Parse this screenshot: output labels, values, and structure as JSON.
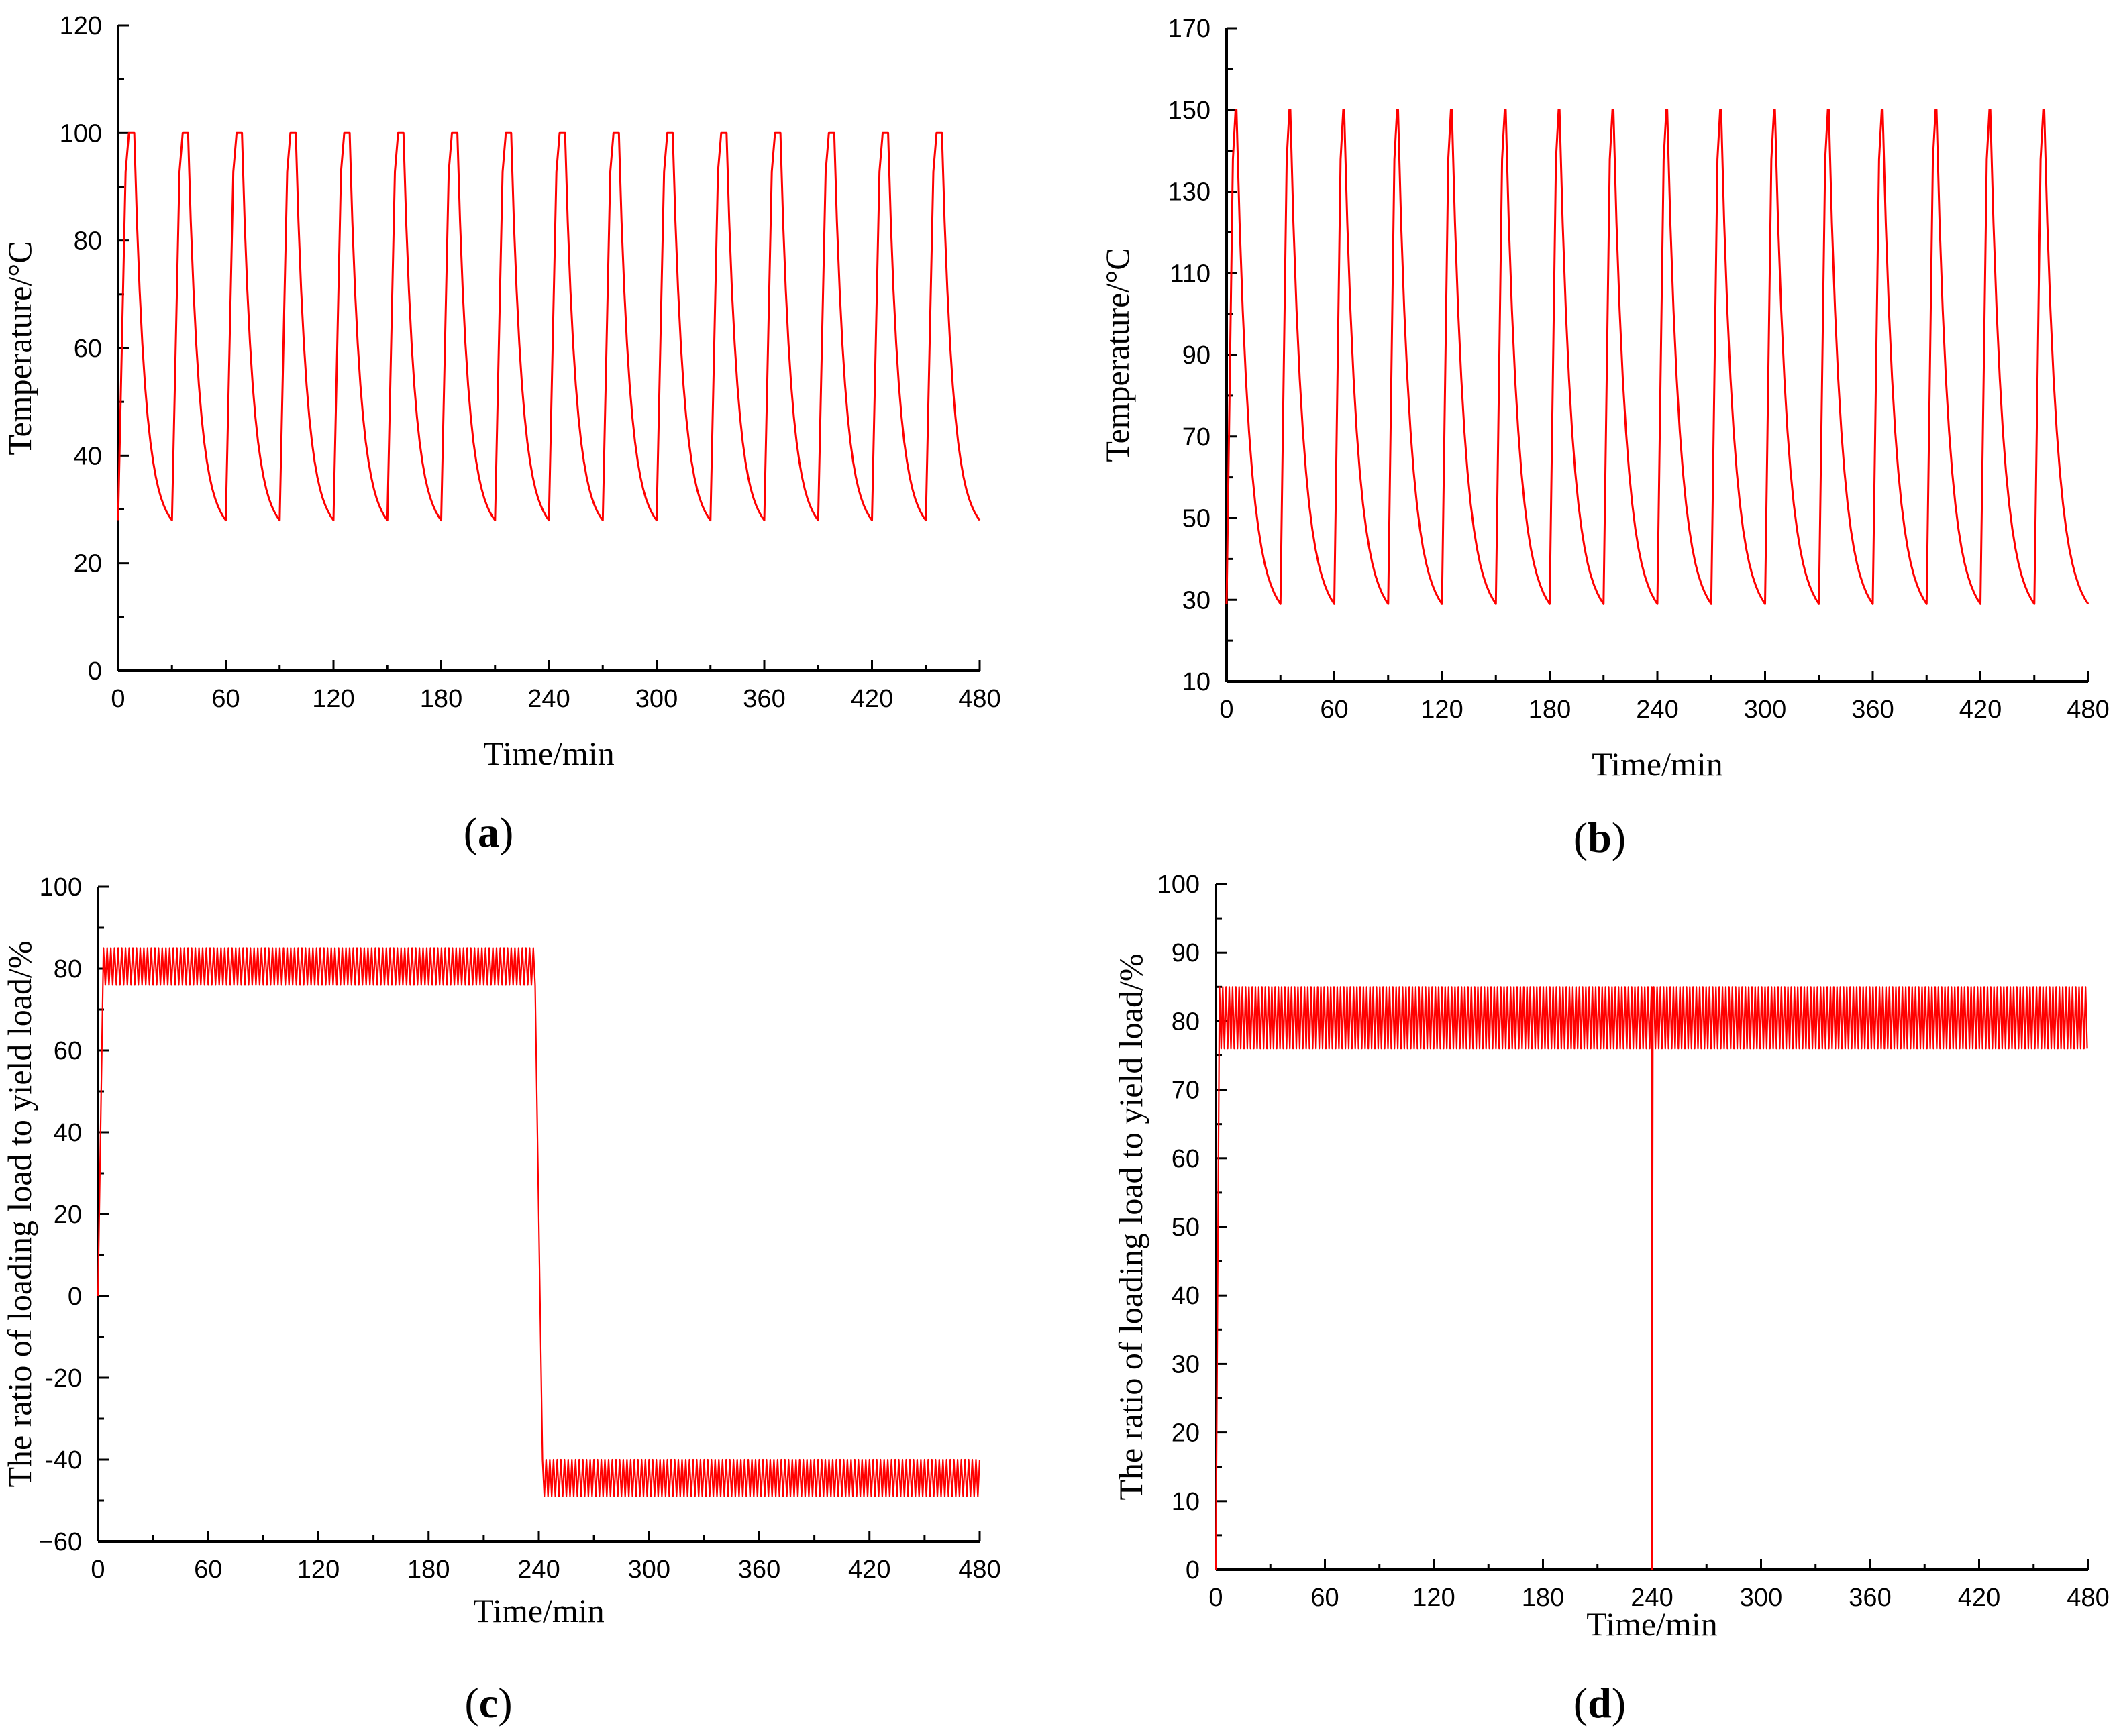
{
  "figure": {
    "line_color": "#ff0000",
    "axis_color": "#000000"
  },
  "chart_data": [
    {
      "id": "a",
      "type": "line",
      "panel_label": "a",
      "xlabel": "Time/min",
      "ylabel": "Temperature/°C",
      "xlim": [
        0,
        480
      ],
      "ylim": [
        0,
        120
      ],
      "xticks": [
        0,
        60,
        120,
        180,
        240,
        300,
        360,
        420,
        480
      ],
      "yticks": [
        0,
        20,
        40,
        60,
        80,
        100,
        120
      ],
      "series": [
        {
          "name": "temperature",
          "pattern": "thermal-cycle",
          "start_value": 28,
          "cycles": 16,
          "period_min": 30,
          "rise_min": 6,
          "hold_min": 3,
          "peak": 100,
          "valley": 28
        }
      ]
    },
    {
      "id": "b",
      "type": "line",
      "panel_label": "b",
      "xlabel": "Time/min",
      "ylabel": "Temperature/°C",
      "xlim": [
        0,
        480
      ],
      "ylim": [
        10,
        170
      ],
      "xticks": [
        0,
        60,
        120,
        180,
        240,
        300,
        360,
        420,
        480
      ],
      "yticks": [
        10,
        30,
        50,
        70,
        90,
        110,
        130,
        150,
        170
      ],
      "series": [
        {
          "name": "temperature",
          "pattern": "thermal-cycle",
          "start_value": 29,
          "cycles": 16,
          "period_min": 30,
          "rise_min": 5,
          "hold_min": 0.5,
          "peak": 150,
          "valley": 29
        }
      ]
    },
    {
      "id": "c",
      "type": "line",
      "panel_label": "c",
      "xlabel": "Time/min",
      "ylabel": "The ratio of loading load to yield load/%",
      "xlim": [
        0,
        480
      ],
      "ylim": [
        -60,
        100
      ],
      "xticks": [
        0,
        60,
        120,
        180,
        240,
        300,
        360,
        420,
        480
      ],
      "yticks": [
        -60,
        -40,
        -20,
        0,
        20,
        40,
        60,
        80,
        100
      ],
      "ytick_labels": [
        "−60",
        "-40",
        "-20",
        "0",
        "20",
        "40",
        "60",
        "80",
        "100"
      ],
      "series": [
        {
          "name": "load-ratio",
          "pattern": "oscillating-blocks",
          "start_value": 0,
          "ramp_end_min": 3,
          "blocks": [
            {
              "from_min": 3,
              "to_min": 238,
              "min": 76,
              "max": 85,
              "mean": 80.5
            },
            {
              "from_min": 242,
              "to_min": 480,
              "min": -49,
              "max": -40,
              "mean": -44.5
            }
          ],
          "oscillation_period_min": 2
        }
      ]
    },
    {
      "id": "d",
      "type": "line",
      "panel_label": "d",
      "xlabel": "Time/min",
      "ylabel": "The ratio of loading load to yield load/%",
      "xlim": [
        0,
        480
      ],
      "ylim": [
        0,
        100
      ],
      "xticks": [
        0,
        60,
        120,
        180,
        240,
        300,
        360,
        420,
        480
      ],
      "yticks": [
        0,
        10,
        20,
        30,
        40,
        50,
        60,
        70,
        80,
        90,
        100
      ],
      "series": [
        {
          "name": "load-ratio",
          "pattern": "oscillating-blocks",
          "start_value": 0,
          "ramp_end_min": 2,
          "blocks": [
            {
              "from_min": 2,
              "to_min": 239,
              "min": 76,
              "max": 85,
              "mean": 80.5
            },
            {
              "from_min": 241,
              "to_min": 480,
              "min": 76,
              "max": 85,
              "mean": 80.5
            }
          ],
          "dip": {
            "at_min": 240,
            "to_value": 0
          },
          "oscillation_period_min": 1.8
        }
      ]
    }
  ]
}
